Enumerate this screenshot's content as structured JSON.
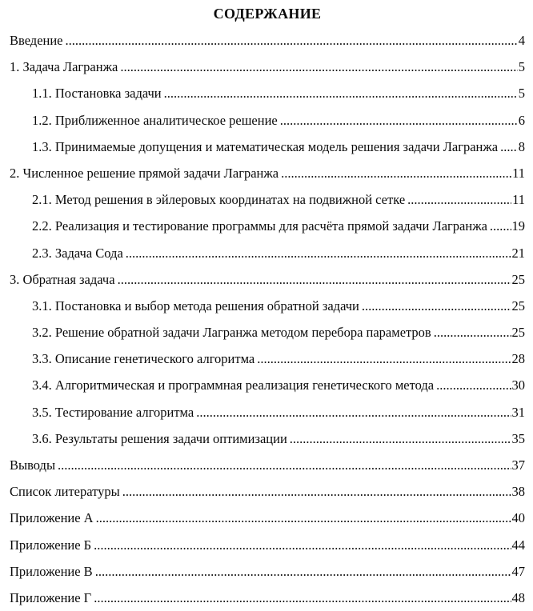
{
  "document": {
    "title": "СОДЕРЖАНИЕ"
  },
  "toc": {
    "entries": [
      {
        "label": "Введение",
        "page": "4",
        "level": 0
      },
      {
        "label": "1. Задача Лагранжа",
        "page": "5",
        "level": 0
      },
      {
        "label": "1.1. Постановка задачи",
        "page": "5",
        "level": 1
      },
      {
        "label": "1.2. Приближенное аналитическое решение",
        "page": "6",
        "level": 1
      },
      {
        "label": "1.3. Принимаемые допущения и математическая модель решения задачи Лагранжа",
        "page": "8",
        "level": 1
      },
      {
        "label": "2. Численное решение прямой задачи Лагранжа",
        "page": "11",
        "level": 0
      },
      {
        "label": "2.1. Метод решения в эйлеровых координатах на подвижной сетке",
        "page": "11",
        "level": 1
      },
      {
        "label": "2.2. Реализация и тестирование программы для расчёта прямой задачи Лагранжа",
        "page": "19",
        "level": 1
      },
      {
        "label": "2.3. Задача Сода",
        "page": "21",
        "level": 1
      },
      {
        "label": "3. Обратная задача",
        "page": "25",
        "level": 0
      },
      {
        "label": "3.1. Постановка и выбор метода решения обратной задачи",
        "page": "25",
        "level": 1
      },
      {
        "label": "3.2. Решение обратной задачи Лагранжа методом перебора параметров",
        "page": "25",
        "level": 1
      },
      {
        "label": "3.3. Описание генетического алгоритма",
        "page": "28",
        "level": 1
      },
      {
        "label": "3.4. Алгоритмическая и программная реализация генетического метода",
        "page": "30",
        "level": 1
      },
      {
        "label": "3.5. Тестирование алгоритма",
        "page": "31",
        "level": 1
      },
      {
        "label": "3.6. Результаты решения задачи оптимизации",
        "page": "35",
        "level": 1
      },
      {
        "label": "Выводы",
        "page": "37",
        "level": 0
      },
      {
        "label": "Список литературы",
        "page": "38",
        "level": 0
      },
      {
        "label": "Приложение А",
        "page": "40",
        "level": 0
      },
      {
        "label": "Приложение Б",
        "page": "44",
        "level": 0
      },
      {
        "label": "Приложение В",
        "page": "47",
        "level": 0
      },
      {
        "label": "Приложение Г",
        "page": "48",
        "level": 0
      }
    ]
  }
}
